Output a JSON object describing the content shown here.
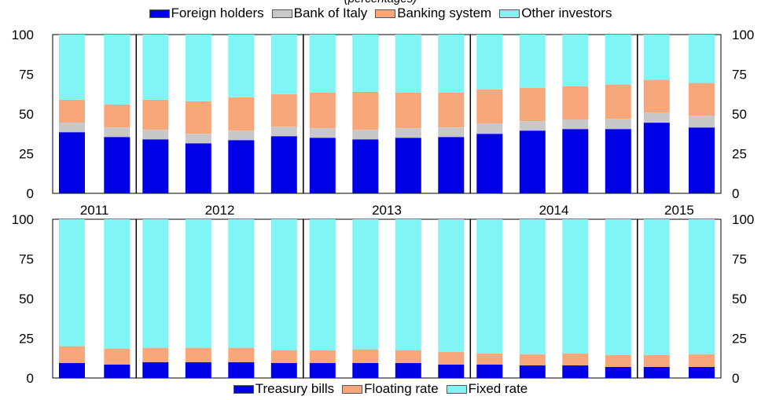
{
  "title": "(percentages)",
  "colors": {
    "foreign": "#0000e6",
    "boi": "#c8c8c8",
    "banking": "#f7a77a",
    "other": "#7ff5f5",
    "tbills": "#0000e6",
    "floating": "#f7a77a",
    "fixed": "#7ff5f5"
  },
  "legend_top": [
    {
      "label": "Foreign holders",
      "color": "#0000e6"
    },
    {
      "label": "Bank of Italy",
      "color": "#c8c8c8"
    },
    {
      "label": "Banking system",
      "color": "#f7a77a"
    },
    {
      "label": "Other investors",
      "color": "#7ff5f5"
    }
  ],
  "legend_bottom": [
    {
      "label": "Treasury bills",
      "color": "#0000e6"
    },
    {
      "label": "Floating rate",
      "color": "#f7a77a"
    },
    {
      "label": "Fixed rate",
      "color": "#7ff5f5"
    }
  ],
  "chart_data": [
    {
      "type": "bar",
      "stacked": true,
      "title": "",
      "ylim": [
        0,
        100
      ],
      "yticks": [
        0,
        25,
        50,
        75,
        100
      ],
      "groups": [
        {
          "label": "2011",
          "count": 2
        },
        {
          "label": "2012",
          "count": 4
        },
        {
          "label": "2013",
          "count": 4
        },
        {
          "label": "2014",
          "count": 4
        },
        {
          "label": "2015",
          "count": 2
        }
      ],
      "series": [
        {
          "name": "Foreign holders",
          "values": [
            38.5,
            35.5,
            34,
            31.5,
            33.5,
            36,
            35,
            34,
            35,
            35.5,
            37.5,
            39.5,
            40.5,
            40.5,
            44.5,
            41.5
          ]
        },
        {
          "name": "Bank of Italy",
          "values": [
            6,
            6,
            6,
            6,
            6,
            6,
            6,
            6,
            6,
            6,
            6.5,
            6,
            6,
            6.5,
            6.5,
            7.5
          ]
        },
        {
          "name": "Banking system",
          "values": [
            14.5,
            14.5,
            19,
            20.5,
            21,
            20.5,
            22.5,
            24,
            22.5,
            22,
            21.5,
            21,
            21,
            21.5,
            20.5,
            20.5
          ]
        },
        {
          "name": "Other investors",
          "values": [
            41,
            44,
            41,
            42,
            39.5,
            37.5,
            36.5,
            36,
            36.5,
            36.5,
            34.5,
            33.5,
            32.5,
            31.5,
            28.5,
            30.5
          ]
        }
      ]
    },
    {
      "type": "bar",
      "stacked": true,
      "title": "",
      "ylim": [
        0,
        100
      ],
      "yticks": [
        0,
        25,
        50,
        75,
        100
      ],
      "groups": [
        {
          "label": "2011",
          "count": 2
        },
        {
          "label": "2012",
          "count": 4
        },
        {
          "label": "2013",
          "count": 4
        },
        {
          "label": "2014",
          "count": 4
        },
        {
          "label": "2015",
          "count": 2
        }
      ],
      "series": [
        {
          "name": "Treasury bills",
          "values": [
            9.5,
            8.5,
            10,
            10,
            10,
            9.5,
            9.5,
            9.5,
            9.5,
            8.5,
            8.5,
            8,
            8,
            7,
            7,
            7
          ]
        },
        {
          "name": "Floating rate",
          "values": [
            10.5,
            10,
            9,
            9,
            9,
            8,
            8,
            8.5,
            8,
            8,
            7,
            7,
            7.5,
            7.5,
            7.5,
            8
          ]
        },
        {
          "name": "Fixed rate",
          "values": [
            80,
            81.5,
            81,
            81,
            81,
            82.5,
            82.5,
            82,
            82.5,
            83.5,
            84.5,
            85,
            84.5,
            85.5,
            85.5,
            85
          ]
        }
      ]
    }
  ]
}
